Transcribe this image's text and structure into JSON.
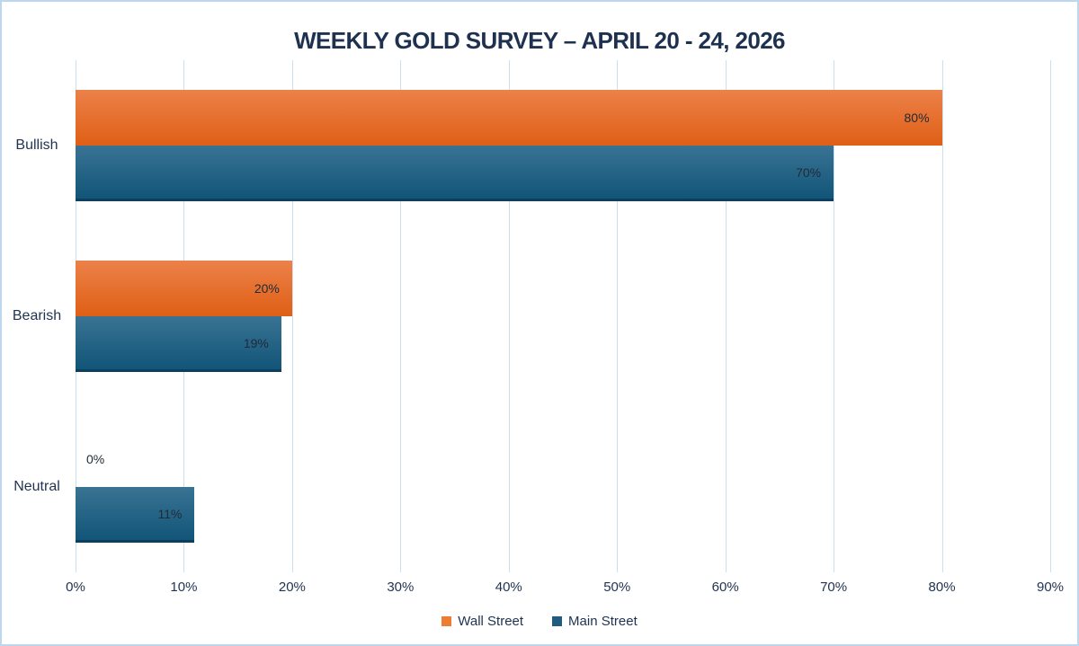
{
  "page": {
    "border_color": "#BDD7EE",
    "background": "#FFFFFF"
  },
  "colors": {
    "gridline": "#CCDFF1",
    "title_text": "#1E3250",
    "axis_text": "#1F3350",
    "category_text": "#1F3350",
    "data_label_text": "#212B36",
    "legend_text": "#1F3350"
  },
  "chart_data": {
    "type": "bar",
    "orientation": "horizontal",
    "title": "WEEKLY GOLD SURVEY – APRIL 20 - 24, 2026",
    "categories": [
      "Bullish",
      "Bearish",
      "Neutral"
    ],
    "series": [
      {
        "name": "Wall Street",
        "color": "#ED7D31",
        "gradient_top": "#EC8149",
        "gradient_bottom": "#DF5F15",
        "edge_color": "",
        "values": [
          80,
          20,
          0
        ],
        "data_labels": [
          "80%",
          "20%",
          "0%"
        ]
      },
      {
        "name": "Main Street",
        "color": "#1F5C80",
        "gradient_top": "#3A7394",
        "gradient_bottom": "#115578",
        "edge_color": "#0D3F5C",
        "values": [
          70,
          19,
          11
        ],
        "data_labels": [
          "70%",
          "19%",
          "11%"
        ]
      }
    ],
    "xlim": [
      0,
      90
    ],
    "x_ticks": [
      0,
      10,
      20,
      30,
      40,
      50,
      60,
      70,
      80,
      90
    ],
    "x_tick_labels": [
      "0%",
      "10%",
      "20%",
      "30%",
      "40%",
      "50%",
      "60%",
      "70%",
      "80%",
      "90%"
    ],
    "grid": true,
    "gridlines": "vertical",
    "legend_position": "bottom"
  }
}
